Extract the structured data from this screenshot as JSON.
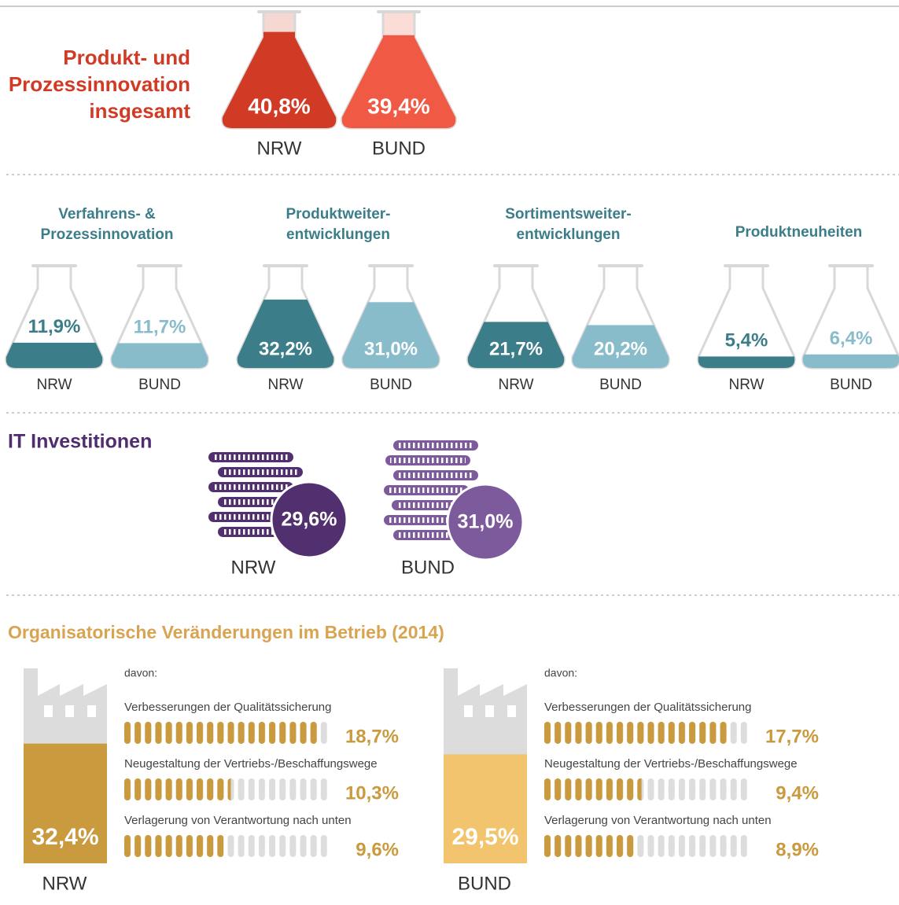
{
  "innovation_total": {
    "title": [
      "Produkt- und",
      "Prozessinnovation",
      "insgesamt"
    ],
    "items": [
      {
        "name": "NRW",
        "value": 40.8,
        "value_label": "40,8%",
        "color": "#d13b26",
        "light": "#f6d8d2"
      },
      {
        "name": "BUND",
        "value": 39.4,
        "value_label": "39,4%",
        "color": "#f05a45",
        "light": "#fbdcd6"
      }
    ]
  },
  "innovation_types": [
    {
      "title": [
        "Verfahrens- &",
        "Prozessinnovation"
      ],
      "items": [
        {
          "name": "NRW",
          "value": 11.9,
          "value_label": "11,9%",
          "color": "#3b7d88"
        },
        {
          "name": "BUND",
          "value": 11.7,
          "value_label": "11,7%",
          "color": "#88bccb"
        }
      ]
    },
    {
      "title": [
        "Produktweiter-",
        "entwicklungen"
      ],
      "items": [
        {
          "name": "NRW",
          "value": 32.2,
          "value_label": "32,2%",
          "color": "#3b7d88"
        },
        {
          "name": "BUND",
          "value": 31.0,
          "value_label": "31,0%",
          "color": "#88bccb"
        }
      ]
    },
    {
      "title": [
        "Sortimentsweiter-",
        "entwicklungen"
      ],
      "items": [
        {
          "name": "NRW",
          "value": 21.7,
          "value_label": "21,7%",
          "color": "#3b7d88"
        },
        {
          "name": "BUND",
          "value": 20.2,
          "value_label": "20,2%",
          "color": "#88bccb"
        }
      ]
    },
    {
      "title": [
        "Produktneuheiten"
      ],
      "items": [
        {
          "name": "NRW",
          "value": 5.4,
          "value_label": "5,4%",
          "color": "#3b7d88"
        },
        {
          "name": "BUND",
          "value": 6.4,
          "value_label": "6,4%",
          "color": "#88bccb"
        }
      ]
    }
  ],
  "it": {
    "title": "IT Investitionen",
    "items": [
      {
        "name": "NRW",
        "value_label": "29,6%",
        "color": "#52306f"
      },
      {
        "name": "BUND",
        "value_label": "31,0%",
        "color": "#7d5a9c"
      }
    ]
  },
  "org": {
    "title": "Organisatorische Veränderungen im Betrieb (2014)",
    "panels": [
      {
        "name": "NRW",
        "value": 32.4,
        "value_label": "32,4%",
        "color": "#c99a3e",
        "intro": "davon:",
        "rows": [
          {
            "label": "Verbesserungen der Qualitätssicherung",
            "value": 18.7,
            "value_label": "18,7%"
          },
          {
            "label": "Neugestaltung der Vertriebs-/Beschaffungswege",
            "value": 10.3,
            "value_label": "10,3%"
          },
          {
            "label": "Verlagerung von Verantwortung nach unten",
            "value": 9.6,
            "value_label": "9,6%"
          }
        ]
      },
      {
        "name": "BUND",
        "value": 29.5,
        "value_label": "29,5%",
        "color": "#f2c46d",
        "intro": "davon:",
        "rows": [
          {
            "label": "Verbesserungen der Qualitätssicherung",
            "value": 17.7,
            "value_label": "17,7%"
          },
          {
            "label": "Neugestaltung der Vertriebs-/Beschaffungswege",
            "value": 9.4,
            "value_label": "9,4%"
          },
          {
            "label": "Verlagerung von Verantwortung nach unten",
            "value": 8.9,
            "value_label": "8,9%"
          }
        ]
      }
    ]
  }
}
